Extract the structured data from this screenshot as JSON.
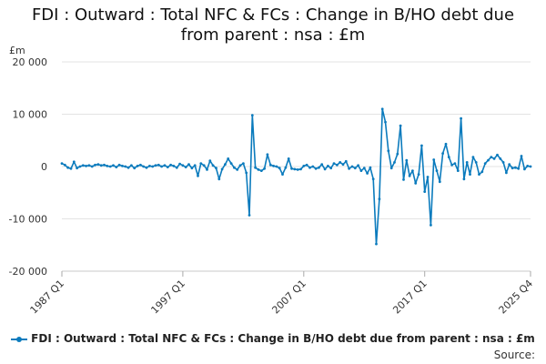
{
  "chart_data": {
    "type": "line",
    "title_lines": [
      "FDI : Outward : Total NFC & FCs : Change in B/HO debt due",
      "from parent : nsa : £m"
    ],
    "ylabel": "£m",
    "ylim": [
      -20000,
      20000
    ],
    "yticks": [
      -20000,
      -10000,
      0,
      10000,
      20000
    ],
    "ytick_labels": [
      "-20 000",
      "-10 000",
      "0",
      "10 000",
      "20 000"
    ],
    "xlim": [
      1987.0,
      2025.75
    ],
    "xticks": [
      1987.0,
      1997.0,
      2007.0,
      2017.0,
      2025.75
    ],
    "xtick_labels": [
      "1987 Q1",
      "1997 Q1",
      "2007 Q1",
      "2017 Q1",
      "2025 Q4"
    ],
    "grid": true,
    "legend_position": "bottom",
    "source_label": "Source:",
    "series": [
      {
        "name": "FDI : Outward : Total NFC & FCs : Change in B/HO debt due from parent : nsa : £m",
        "color": "#0b7bbd",
        "points": [
          [
            1987.0,
            600
          ],
          [
            1987.25,
            300
          ],
          [
            1987.5,
            -200
          ],
          [
            1987.75,
            -400
          ],
          [
            1988.0,
            900
          ],
          [
            1988.25,
            -300
          ],
          [
            1988.5,
            0
          ],
          [
            1988.75,
            200
          ],
          [
            1989.0,
            100
          ],
          [
            1989.25,
            200
          ],
          [
            1989.5,
            0
          ],
          [
            1989.75,
            300
          ],
          [
            1990.0,
            400
          ],
          [
            1990.25,
            200
          ],
          [
            1990.5,
            300
          ],
          [
            1990.75,
            100
          ],
          [
            1991.0,
            0
          ],
          [
            1991.25,
            200
          ],
          [
            1991.5,
            -100
          ],
          [
            1991.75,
            300
          ],
          [
            1992.0,
            100
          ],
          [
            1992.25,
            0
          ],
          [
            1992.5,
            -200
          ],
          [
            1992.75,
            200
          ],
          [
            1993.0,
            -300
          ],
          [
            1993.25,
            100
          ],
          [
            1993.5,
            300
          ],
          [
            1993.75,
            0
          ],
          [
            1994.0,
            -200
          ],
          [
            1994.25,
            100
          ],
          [
            1994.5,
            0
          ],
          [
            1994.75,
            200
          ],
          [
            1995.0,
            300
          ],
          [
            1995.25,
            0
          ],
          [
            1995.5,
            200
          ],
          [
            1995.75,
            -100
          ],
          [
            1996.0,
            300
          ],
          [
            1996.25,
            100
          ],
          [
            1996.5,
            -200
          ],
          [
            1996.75,
            500
          ],
          [
            1997.0,
            200
          ],
          [
            1997.25,
            -100
          ],
          [
            1997.5,
            400
          ],
          [
            1997.75,
            -300
          ],
          [
            1998.0,
            200
          ],
          [
            1998.25,
            -1800
          ],
          [
            1998.5,
            600
          ],
          [
            1998.75,
            200
          ],
          [
            1999.0,
            -600
          ],
          [
            1999.25,
            1100
          ],
          [
            1999.5,
            200
          ],
          [
            1999.75,
            -300
          ],
          [
            2000.0,
            -2400
          ],
          [
            2000.25,
            -500
          ],
          [
            2000.5,
            400
          ],
          [
            2000.75,
            1500
          ],
          [
            2001.0,
            600
          ],
          [
            2001.25,
            -200
          ],
          [
            2001.5,
            -600
          ],
          [
            2001.75,
            200
          ],
          [
            2002.0,
            600
          ],
          [
            2002.25,
            -1200
          ],
          [
            2002.5,
            -9300
          ],
          [
            2002.75,
            9800
          ],
          [
            2003.0,
            -200
          ],
          [
            2003.25,
            -600
          ],
          [
            2003.5,
            -800
          ],
          [
            2003.75,
            -400
          ],
          [
            2004.0,
            2300
          ],
          [
            2004.25,
            300
          ],
          [
            2004.5,
            100
          ],
          [
            2004.75,
            0
          ],
          [
            2005.0,
            -300
          ],
          [
            2005.25,
            -1500
          ],
          [
            2005.5,
            -200
          ],
          [
            2005.75,
            1500
          ],
          [
            2006.0,
            -400
          ],
          [
            2006.25,
            -500
          ],
          [
            2006.5,
            -600
          ],
          [
            2006.75,
            -500
          ],
          [
            2007.0,
            100
          ],
          [
            2007.25,
            300
          ],
          [
            2007.5,
            -200
          ],
          [
            2007.75,
            0
          ],
          [
            2008.0,
            -400
          ],
          [
            2008.25,
            -200
          ],
          [
            2008.5,
            400
          ],
          [
            2008.75,
            -500
          ],
          [
            2009.0,
            100
          ],
          [
            2009.25,
            -300
          ],
          [
            2009.5,
            600
          ],
          [
            2009.75,
            300
          ],
          [
            2010.0,
            800
          ],
          [
            2010.25,
            400
          ],
          [
            2010.5,
            1000
          ],
          [
            2010.75,
            -400
          ],
          [
            2011.0,
            0
          ],
          [
            2011.25,
            -300
          ],
          [
            2011.5,
            200
          ],
          [
            2011.75,
            -800
          ],
          [
            2012.0,
            -300
          ],
          [
            2012.25,
            -1300
          ],
          [
            2012.5,
            -200
          ],
          [
            2012.75,
            -2400
          ],
          [
            2013.0,
            -14800
          ],
          [
            2013.25,
            -6200
          ],
          [
            2013.5,
            11000
          ],
          [
            2013.75,
            8500
          ],
          [
            2014.0,
            3000
          ],
          [
            2014.25,
            -300
          ],
          [
            2014.5,
            800
          ],
          [
            2014.75,
            2400
          ],
          [
            2015.0,
            7800
          ],
          [
            2015.25,
            -2500
          ],
          [
            2015.5,
            1200
          ],
          [
            2015.75,
            -1800
          ],
          [
            2016.0,
            -800
          ],
          [
            2016.25,
            -3200
          ],
          [
            2016.5,
            -1500
          ],
          [
            2016.75,
            4000
          ],
          [
            2017.0,
            -4800
          ],
          [
            2017.25,
            -2000
          ],
          [
            2017.5,
            -11200
          ],
          [
            2017.75,
            1300
          ],
          [
            2018.0,
            -800
          ],
          [
            2018.25,
            -2900
          ],
          [
            2018.5,
            2500
          ],
          [
            2018.75,
            4300
          ],
          [
            2019.0,
            1800
          ],
          [
            2019.25,
            300
          ],
          [
            2019.5,
            600
          ],
          [
            2019.75,
            -800
          ],
          [
            2020.0,
            9200
          ],
          [
            2020.25,
            -2400
          ],
          [
            2020.5,
            800
          ],
          [
            2020.75,
            -1500
          ],
          [
            2021.0,
            1800
          ],
          [
            2021.25,
            800
          ],
          [
            2021.5,
            -1500
          ],
          [
            2021.75,
            -1000
          ],
          [
            2022.0,
            600
          ],
          [
            2022.25,
            1200
          ],
          [
            2022.5,
            1800
          ],
          [
            2022.75,
            1500
          ],
          [
            2023.0,
            2200
          ],
          [
            2023.25,
            1500
          ],
          [
            2023.5,
            800
          ],
          [
            2023.75,
            -1200
          ],
          [
            2024.0,
            400
          ],
          [
            2024.25,
            -300
          ],
          [
            2024.5,
            -200
          ],
          [
            2024.75,
            -400
          ],
          [
            2025.0,
            2000
          ],
          [
            2025.25,
            -500
          ],
          [
            2025.5,
            100
          ],
          [
            2025.75,
            0
          ]
        ]
      }
    ]
  }
}
